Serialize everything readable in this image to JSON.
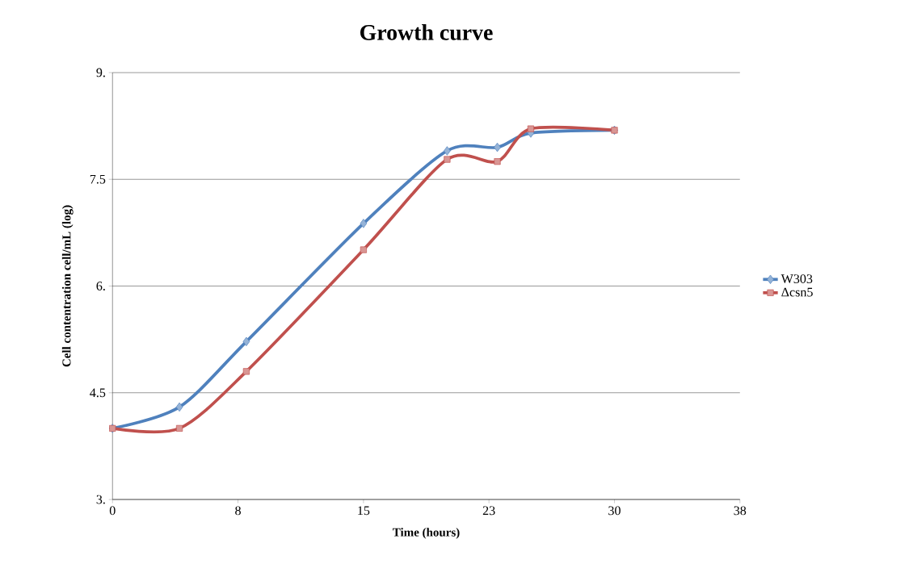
{
  "chart_data": {
    "type": "line",
    "title": "Growth curve",
    "xlabel": "Time (hours)",
    "ylabel": "Cell contentration cell/mL (log)",
    "x": [
      0,
      4,
      8,
      15,
      20,
      23,
      25,
      30
    ],
    "series": [
      {
        "name": "W303",
        "color": "#4f81bd",
        "marker": "diamond",
        "values": [
          4.0,
          4.3,
          5.22,
          6.88,
          7.9,
          7.95,
          8.15,
          8.19
        ]
      },
      {
        "name": "Δcsn5",
        "color": "#c0504d",
        "marker": "square",
        "values": [
          4.0,
          4.0,
          4.8,
          6.51,
          7.78,
          7.75,
          8.21,
          8.19
        ]
      }
    ],
    "xlim": [
      0,
      37.5
    ],
    "xticks": [
      0,
      {
        "value": 7.5,
        "label": "8"
      },
      15,
      {
        "value": 22.5,
        "label": "23"
      },
      30,
      {
        "value": 37.5,
        "label": "38"
      }
    ],
    "ylim": [
      3,
      9
    ],
    "yticks": [
      {
        "value": 3,
        "label": "3."
      },
      4.5,
      {
        "value": 6,
        "label": "6."
      },
      7.5,
      {
        "value": 9,
        "label": "9."
      }
    ],
    "grid": "y",
    "legend": "right"
  }
}
